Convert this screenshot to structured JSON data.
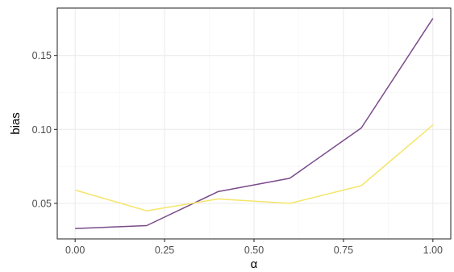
{
  "chart_data": {
    "type": "line",
    "title": "",
    "xlabel": "α",
    "ylabel": "bias",
    "xlim": [
      -0.05,
      1.05
    ],
    "ylim": [
      0.026,
      0.182
    ],
    "x_ticks": [
      0.0,
      0.25,
      0.5,
      0.75,
      1.0
    ],
    "x_tick_labels": [
      "0.00",
      "0.25",
      "0.50",
      "0.75",
      "1.00"
    ],
    "x_minor_ticks": [
      0.125,
      0.375,
      0.625,
      0.875
    ],
    "y_ticks": [
      0.05,
      0.1,
      0.15
    ],
    "y_tick_labels": [
      "0.05",
      "0.10",
      "0.15"
    ],
    "y_minor_ticks": [
      0.075,
      0.125
    ],
    "grid": true,
    "legend": "none",
    "x": [
      0.0,
      0.2,
      0.4,
      0.6,
      0.8,
      1.0
    ],
    "series": [
      {
        "color": "#7a4b8a",
        "values": [
          0.033,
          0.035,
          0.058,
          0.067,
          0.101,
          0.175
        ]
      },
      {
        "color": "#f5e56b",
        "values": [
          0.059,
          0.045,
          0.053,
          0.05,
          0.062,
          0.103
        ]
      }
    ]
  }
}
